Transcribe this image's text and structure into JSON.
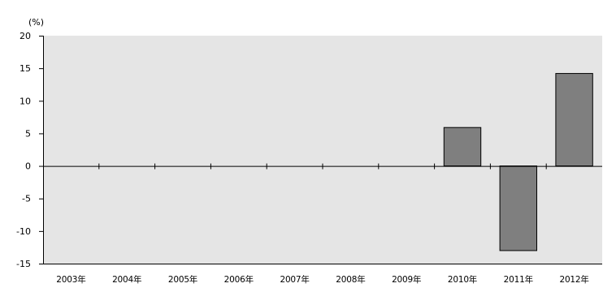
{
  "chart_data": {
    "type": "bar",
    "title": "",
    "xlabel": "",
    "ylabel": "",
    "y_unit_label": "(%)",
    "categories": [
      "2003年",
      "2004年",
      "2005年",
      "2006年",
      "2007年",
      "2008年",
      "2009年",
      "2010年",
      "2011年",
      "2012年"
    ],
    "series": [
      {
        "values": [
          null,
          null,
          null,
          null,
          null,
          null,
          null,
          5.9,
          -13.0,
          14.2
        ]
      }
    ],
    "ylim": [
      -15,
      20
    ],
    "yticks": [
      -15,
      -10,
      -5,
      0,
      5,
      10,
      15,
      20
    ],
    "ytick_labels": [
      "-15",
      "-10",
      "-5",
      "0",
      "5",
      "10",
      "15",
      "20"
    ],
    "grid": false,
    "legend": "none",
    "colors": {
      "plot_background": "#e5e5e5",
      "bar_fill": "#7f7f7f",
      "bar_stroke": "#000000",
      "axis": "#000000"
    }
  }
}
